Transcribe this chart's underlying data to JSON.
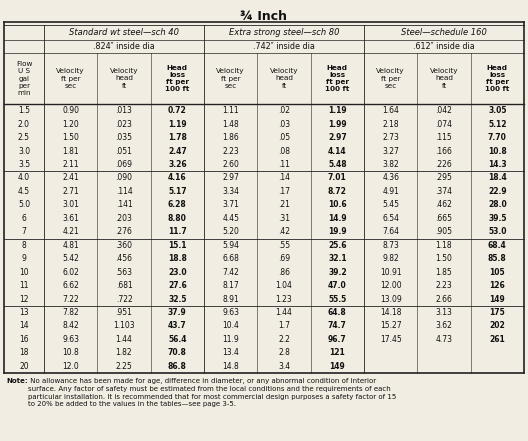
{
  "title": "¾ Inch",
  "col_groups": [
    {
      "label": "Standard wt steel—sch 40",
      "sub_label": ".824″ inside dia",
      "cols": [
        "Velocity\nft per\nsec",
        "Velocity\nhead\nft",
        "Head\nloss\nft per\n100 ft"
      ]
    },
    {
      "label": "Extra strong steel—sch 80",
      "sub_label": ".742″ inside dia",
      "cols": [
        "Velocity\nft per\nsec",
        "Velocity\nhead\nft",
        "Head\nloss\nft per\n100 ft"
      ]
    },
    {
      "label": "Steel—schedule 160",
      "sub_label": ".612″ inside dia",
      "cols": [
        "Velocity\nft per\nsec",
        "Velocity\nhead\nft",
        "Head\nloss\nft per\n100 ft"
      ]
    }
  ],
  "row_label_header": "Flow\nU S\ngal\nper\nmin",
  "rows": [
    [
      "1.5",
      "0.90",
      ".013",
      "0.72",
      "1.11",
      ".02",
      "1.19",
      "1.64",
      ".042",
      "3.05"
    ],
    [
      "2.0",
      "1.20",
      ".023",
      "1.19",
      "1.48",
      ".03",
      "1.99",
      "2.18",
      ".074",
      "5.12"
    ],
    [
      "2.5",
      "1.50",
      ".035",
      "1.78",
      "1.86",
      ".05",
      "2.97",
      "2.73",
      ".115",
      "7.70"
    ],
    [
      "3.0",
      "1.81",
      ".051",
      "2.47",
      "2.23",
      ".08",
      "4.14",
      "3.27",
      ".166",
      "10.8"
    ],
    [
      "3.5",
      "2.11",
      ".069",
      "3.26",
      "2.60",
      ".11",
      "5.48",
      "3.82",
      ".226",
      "14.3"
    ],
    [
      "4.0",
      "2.41",
      ".090",
      "4.16",
      "2.97",
      ".14",
      "7.01",
      "4.36",
      ".295",
      "18.4"
    ],
    [
      "4.5",
      "2.71",
      ".114",
      "5.17",
      "3.34",
      ".17",
      "8.72",
      "4.91",
      ".374",
      "22.9"
    ],
    [
      "5.0",
      "3.01",
      ".141",
      "6.28",
      "3.71",
      ".21",
      "10.6",
      "5.45",
      ".462",
      "28.0"
    ],
    [
      "6",
      "3.61",
      ".203",
      "8.80",
      "4.45",
      ".31",
      "14.9",
      "6.54",
      ".665",
      "39.5"
    ],
    [
      "7",
      "4.21",
      ".276",
      "11.7",
      "5.20",
      ".42",
      "19.9",
      "7.64",
      ".905",
      "53.0"
    ],
    [
      "8",
      "4.81",
      ".360",
      "15.1",
      "5.94",
      ".55",
      "25.6",
      "8.73",
      "1.18",
      "68.4"
    ],
    [
      "9",
      "5.42",
      ".456",
      "18.8",
      "6.68",
      ".69",
      "32.1",
      "9.82",
      "1.50",
      "85.8"
    ],
    [
      "10",
      "6.02",
      ".563",
      "23.0",
      "7.42",
      ".86",
      "39.2",
      "10.91",
      "1.85",
      "105"
    ],
    [
      "11",
      "6.62",
      ".681",
      "27.6",
      "8.17",
      "1.04",
      "47.0",
      "12.00",
      "2.23",
      "126"
    ],
    [
      "12",
      "7.22",
      ".722",
      "32.5",
      "8.91",
      "1.23",
      "55.5",
      "13.09",
      "2.66",
      "149"
    ],
    [
      "13",
      "7.82",
      ".951",
      "37.9",
      "9.63",
      "1.44",
      "64.8",
      "14.18",
      "3.13",
      "175"
    ],
    [
      "14",
      "8.42",
      "1.103",
      "43.7",
      "10.4",
      "1.7",
      "74.7",
      "15.27",
      "3.62",
      "202"
    ],
    [
      "16",
      "9.63",
      "1.44",
      "56.4",
      "11.9",
      "2.2",
      "96.7",
      "17.45",
      "4.73",
      "261"
    ],
    [
      "18",
      "10.8",
      "1.82",
      "70.8",
      "13.4",
      "2.8",
      "121",
      "",
      "",
      ""
    ],
    [
      "20",
      "12.0",
      "2.25",
      "86.8",
      "14.8",
      "3.4",
      "149",
      "",
      "",
      ""
    ]
  ],
  "group_separators_after": [
    4,
    9,
    14
  ],
  "note_bold": "Note:",
  "note_rest": " No allowance has been made for age, difference in diameter, or any abnormal condition of interior surface. Any factor of safety must be estimated from the local conditions and the requirements of each particular installation. It is recommended that for most commercial design purposes a safety factor of 15 to 20% be added to the values in the tables—see page 3-5.",
  "bg_color": "#f2ede3",
  "text_color": "#111111",
  "line_color": "#222222"
}
